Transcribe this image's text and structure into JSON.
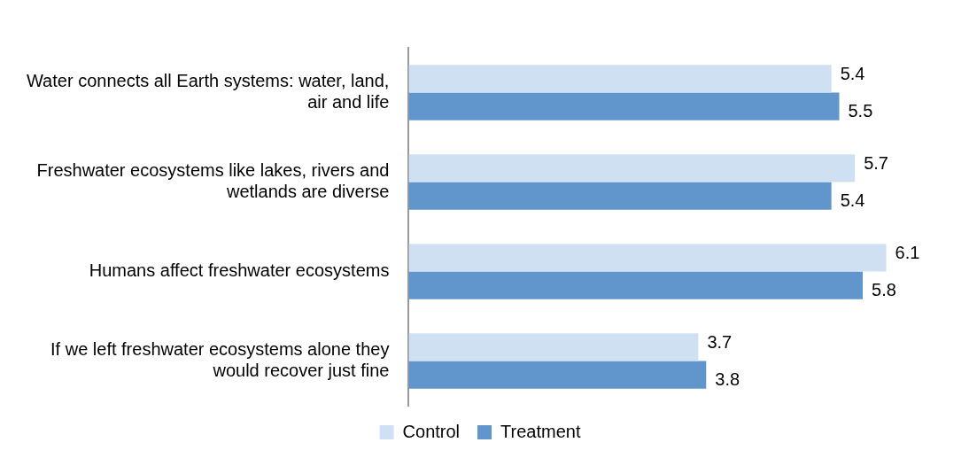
{
  "chart_data": {
    "type": "bar",
    "orientation": "horizontal",
    "categories": [
      "Water connects all Earth systems: water, land, air and life",
      "Freshwater ecosystems like lakes, rivers and wetlands are diverse",
      "Humans affect freshwater ecosystems",
      "If we left freshwater ecosystems alone they would recover just fine"
    ],
    "series": [
      {
        "name": "Control",
        "color": "#cfe0f2",
        "values": [
          5.4,
          5.7,
          6.1,
          3.7
        ]
      },
      {
        "name": "Treatment",
        "color": "#6096cc",
        "values": [
          5.5,
          5.4,
          5.8,
          3.8
        ]
      }
    ],
    "data_labels": true,
    "legend": "bottom"
  }
}
